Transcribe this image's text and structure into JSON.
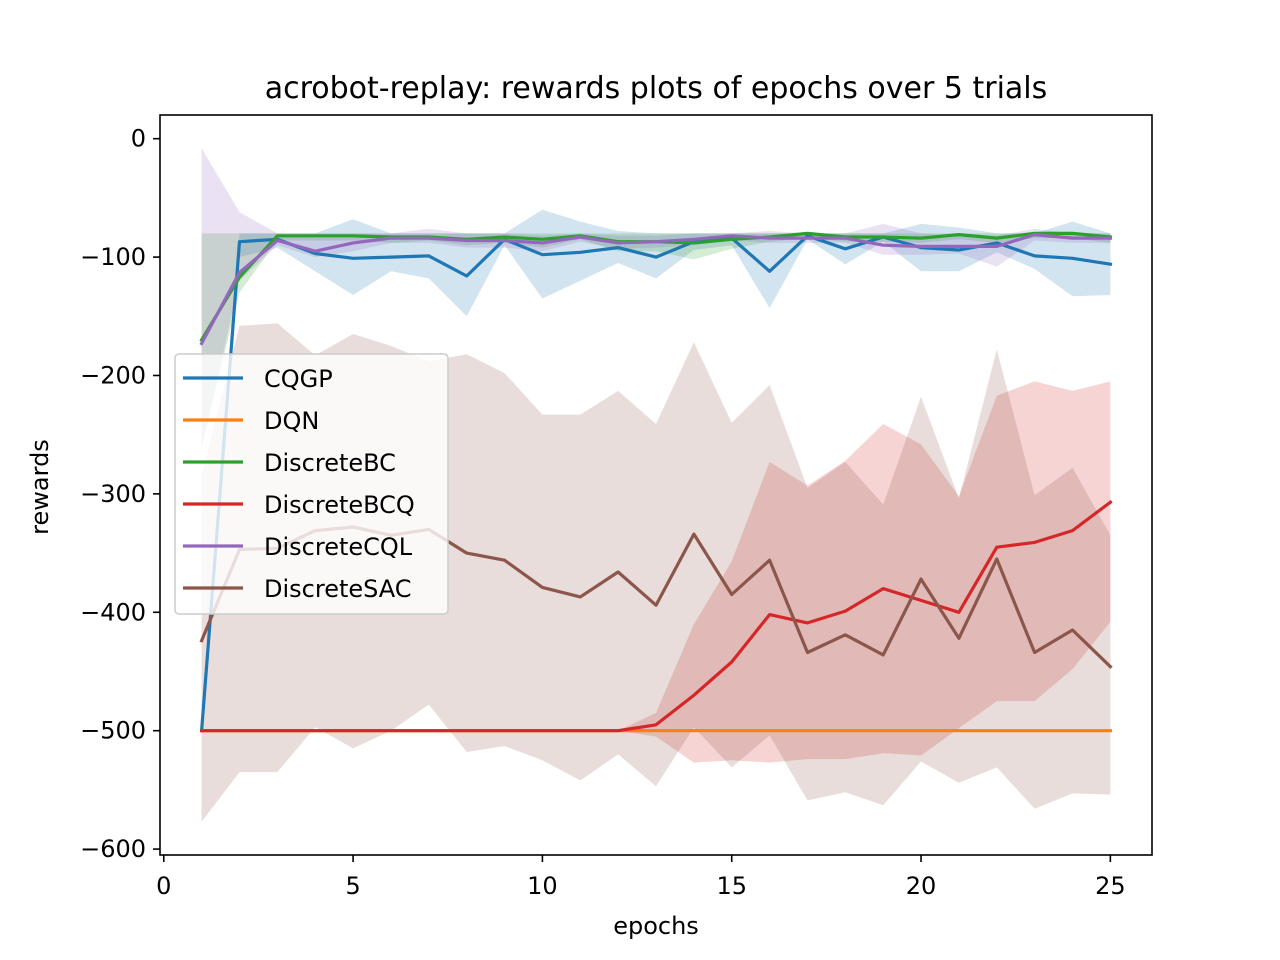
{
  "chart_data": {
    "type": "line",
    "title": "acrobot-replay: rewards plots of epochs over 5 trials",
    "xlabel": "epochs",
    "ylabel": "rewards",
    "xlim": [
      -0.1,
      26.1
    ],
    "ylim": [
      -605,
      20
    ],
    "xticks": [
      0,
      5,
      10,
      15,
      20,
      25
    ],
    "yticks": [
      0,
      -100,
      -200,
      -300,
      -400,
      -500,
      -600
    ],
    "xtick_labels": [
      "0",
      "5",
      "10",
      "15",
      "20",
      "25"
    ],
    "ytick_labels": [
      "0",
      "−100",
      "−200",
      "−300",
      "−400",
      "−500",
      "−600"
    ],
    "grid": false,
    "legend_position": "center-left",
    "x": [
      1,
      2,
      3,
      4,
      5,
      6,
      7,
      8,
      9,
      10,
      11,
      12,
      13,
      14,
      15,
      16,
      17,
      18,
      19,
      20,
      21,
      22,
      23,
      24,
      25
    ],
    "series": [
      {
        "name": "CQGP",
        "color": "#1f77b4",
        "values": [
          -500,
          -87,
          -85,
          -97,
          -101,
          -100,
          -99,
          -116,
          -85,
          -98,
          -96,
          -92,
          -100,
          -87,
          -84,
          -112,
          -82,
          -93,
          -83,
          -92,
          -94,
          -88,
          -99,
          -101,
          -106
        ],
        "band_upper": [
          -500,
          -80,
          -80,
          -80,
          -68,
          -80,
          -80,
          -80,
          -80,
          -60,
          -70,
          -78,
          -80,
          -80,
          -80,
          -80,
          -80,
          -80,
          -80,
          -72,
          -75,
          -80,
          -80,
          -70,
          -80
        ],
        "band_lower": [
          -500,
          -100,
          -92,
          -112,
          -132,
          -112,
          -118,
          -150,
          -90,
          -135,
          -120,
          -105,
          -118,
          -94,
          -90,
          -143,
          -85,
          -106,
          -87,
          -112,
          -112,
          -96,
          -110,
          -133,
          -132
        ]
      },
      {
        "name": "DQN",
        "color": "#ff7f0e",
        "values": [
          -500,
          -500,
          -500,
          -500,
          -500,
          -500,
          -500,
          -500,
          -500,
          -500,
          -500,
          -500,
          -500,
          -500,
          -500,
          -500,
          -500,
          -500,
          -500,
          -500,
          -500,
          -500,
          -500,
          -500,
          -500
        ]
      },
      {
        "name": "DiscreteBC",
        "color": "#2ca02c",
        "values": [
          -170,
          -117,
          -82,
          -82,
          -82,
          -83,
          -83,
          -85,
          -83,
          -85,
          -82,
          -87,
          -87,
          -88,
          -85,
          -83,
          -80,
          -83,
          -83,
          -84,
          -81,
          -84,
          -80,
          -80,
          -83
        ],
        "band_upper": [
          -80,
          -80,
          -80,
          -80,
          -80,
          -80,
          -80,
          -80,
          -80,
          -80,
          -80,
          -80,
          -80,
          -80,
          -80,
          -80,
          -80,
          -80,
          -80,
          -80,
          -80,
          -80,
          -80,
          -80,
          -80
        ],
        "band_lower": [
          -260,
          -130,
          -86,
          -86,
          -86,
          -88,
          -86,
          -90,
          -88,
          -92,
          -85,
          -95,
          -95,
          -102,
          -93,
          -87,
          -84,
          -87,
          -87,
          -88,
          -85,
          -88,
          -84,
          -84,
          -88
        ]
      },
      {
        "name": "DiscreteBCQ",
        "color": "#d62728",
        "values": [
          -500,
          -500,
          -500,
          -500,
          -500,
          -500,
          -500,
          -500,
          -500,
          -500,
          -500,
          -500,
          -495,
          -470,
          -442,
          -402,
          -409,
          -399,
          -380,
          -390,
          -400,
          -345,
          -341,
          -331,
          -307
        ],
        "band_upper": [
          -500,
          -500,
          -500,
          -500,
          -500,
          -500,
          -500,
          -500,
          -500,
          -500,
          -500,
          -500,
          -485,
          -410,
          -357,
          -273,
          -293,
          -272,
          -241,
          -258,
          -302,
          -217,
          -205,
          -213,
          -205
        ],
        "band_lower": [
          -500,
          -500,
          -500,
          -500,
          -500,
          -500,
          -500,
          -500,
          -500,
          -500,
          -500,
          -500,
          -505,
          -527,
          -525,
          -527,
          -524,
          -524,
          -519,
          -521,
          -498,
          -475,
          -475,
          -448,
          -408
        ]
      },
      {
        "name": "DiscreteCQL",
        "color": "#9467bd",
        "values": [
          -173,
          -113,
          -86,
          -95,
          -88,
          -84,
          -84,
          -86,
          -86,
          -88,
          -83,
          -88,
          -87,
          -85,
          -82,
          -84,
          -84,
          -84,
          -90,
          -91,
          -91,
          -91,
          -81,
          -84,
          -84
        ],
        "band_upper": [
          -8,
          -62,
          -80,
          -80,
          -80,
          -80,
          -76,
          -80,
          -80,
          -82,
          -80,
          -82,
          -82,
          -80,
          -80,
          -78,
          -80,
          -80,
          -72,
          -80,
          -82,
          -82,
          -76,
          -80,
          -80
        ],
        "band_lower": [
          -262,
          -120,
          -90,
          -100,
          -95,
          -88,
          -88,
          -92,
          -92,
          -95,
          -87,
          -93,
          -92,
          -90,
          -86,
          -88,
          -88,
          -88,
          -98,
          -98,
          -97,
          -108,
          -86,
          -88,
          -88
        ]
      },
      {
        "name": "DiscreteSAC",
        "color": "#8c564b",
        "values": [
          -424,
          -347,
          -346,
          -331,
          -328,
          -335,
          -330,
          -350,
          -356,
          -379,
          -387,
          -366,
          -394,
          -334,
          -385,
          -356,
          -434,
          -419,
          -436,
          -372,
          -422,
          -355,
          -434,
          -415,
          -446
        ],
        "band_upper": [
          -285,
          -158,
          -156,
          -183,
          -165,
          -175,
          -188,
          -182,
          -198,
          -233,
          -233,
          -213,
          -241,
          -172,
          -240,
          -208,
          -295,
          -273,
          -309,
          -218,
          -304,
          -178,
          -301,
          -278,
          -335
        ],
        "band_lower": [
          -577,
          -535,
          -535,
          -497,
          -515,
          -500,
          -478,
          -518,
          -513,
          -525,
          -542,
          -520,
          -547,
          -497,
          -531,
          -504,
          -559,
          -552,
          -563,
          -526,
          -544,
          -531,
          -566,
          -553,
          -554
        ]
      }
    ]
  }
}
